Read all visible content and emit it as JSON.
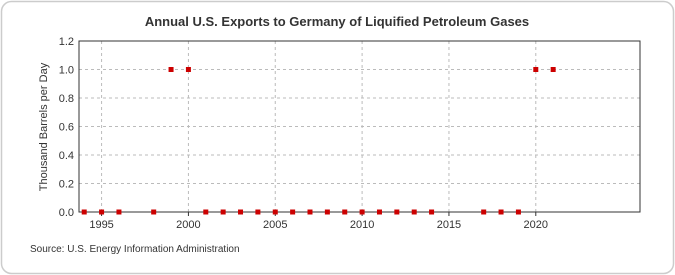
{
  "chart_data": {
    "type": "scatter",
    "title": "Annual U.S. Exports to Germany of Liquified Petroleum Gases",
    "y_label": "Thousand Barrels per Day",
    "source": "Source: U.S. Energy Information Administration",
    "color": "#cc0000",
    "x": [
      1994,
      1995,
      1996,
      1998,
      1999,
      2000,
      2001,
      2002,
      2003,
      2004,
      2005,
      2006,
      2007,
      2008,
      2009,
      2010,
      2011,
      2012,
      2013,
      2014,
      2017,
      2018,
      2019,
      2020,
      2021
    ],
    "values": [
      0,
      0,
      0,
      0,
      1,
      1,
      0,
      0,
      0,
      0,
      0,
      0,
      0,
      0,
      0,
      0,
      0,
      0,
      0,
      0,
      0,
      0,
      0,
      1,
      1
    ],
    "xlim": [
      1993.7,
      2026
    ],
    "xticks": [
      1995,
      2000,
      2005,
      2010,
      2015,
      2020
    ],
    "ylim": [
      0,
      1.2
    ],
    "yticks": [
      {
        "value": 0,
        "label": "0.0"
      },
      {
        "value": 0.2,
        "label": "0.2"
      },
      {
        "value": 0.4,
        "label": "0.4"
      },
      {
        "value": 0.6,
        "label": "0.6"
      },
      {
        "value": 0.8,
        "label": "0.8"
      },
      {
        "value": 1,
        "label": "1.0"
      },
      {
        "value": 1.2,
        "label": "1.2"
      }
    ],
    "grid": true
  }
}
